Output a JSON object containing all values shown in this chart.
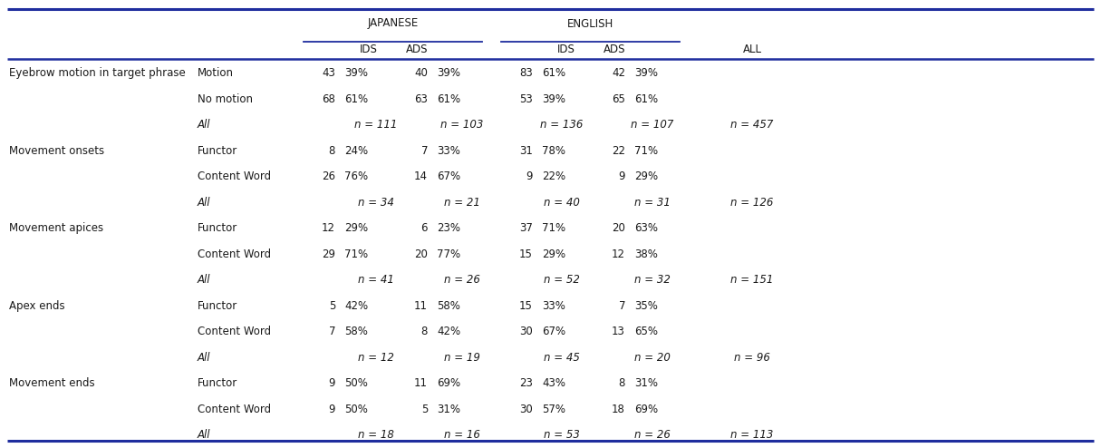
{
  "border_color": "#1f2d9e",
  "text_color": "#1a1a1a",
  "bg_color": "#ffffff",
  "font_size": 8.5,
  "rows": [
    {
      "cat": "Eyebrow motion in target phrase",
      "sub": "Motion",
      "j_ids_n": "43",
      "j_ids_p": "39%",
      "j_ads_n": "40",
      "j_ads_p": "39%",
      "e_ids_n": "83",
      "e_ids_p": "61%",
      "e_ads_n": "42",
      "e_ads_p": "39%",
      "all": ""
    },
    {
      "cat": "",
      "sub": "No motion",
      "j_ids_n": "68",
      "j_ids_p": "61%",
      "j_ads_n": "63",
      "j_ads_p": "61%",
      "e_ids_n": "53",
      "e_ids_p": "39%",
      "e_ads_n": "65",
      "e_ads_p": "61%",
      "all": ""
    },
    {
      "cat": "",
      "sub": "All",
      "j_ids_n": "n = 111",
      "j_ids_p": "",
      "j_ads_n": "n = 103",
      "j_ads_p": "",
      "e_ids_n": "n = 136",
      "e_ids_p": "",
      "e_ads_n": "n = 107",
      "e_ads_p": "",
      "all": "n = 457"
    },
    {
      "cat": "Movement onsets",
      "sub": "Functor",
      "j_ids_n": "8",
      "j_ids_p": "24%",
      "j_ads_n": "7",
      "j_ads_p": "33%",
      "e_ids_n": "31",
      "e_ids_p": "78%",
      "e_ads_n": "22",
      "e_ads_p": "71%",
      "all": ""
    },
    {
      "cat": "",
      "sub": "Content Word",
      "j_ids_n": "26",
      "j_ids_p": "76%",
      "j_ads_n": "14",
      "j_ads_p": "67%",
      "e_ids_n": "9",
      "e_ids_p": "22%",
      "e_ads_n": "9",
      "e_ads_p": "29%",
      "all": ""
    },
    {
      "cat": "",
      "sub": "All",
      "j_ids_n": "n = 34",
      "j_ids_p": "",
      "j_ads_n": "n = 21",
      "j_ads_p": "",
      "e_ids_n": "n = 40",
      "e_ids_p": "",
      "e_ads_n": "n = 31",
      "e_ads_p": "",
      "all": "n = 126"
    },
    {
      "cat": "Movement apices",
      "sub": "Functor",
      "j_ids_n": "12",
      "j_ids_p": "29%",
      "j_ads_n": "6",
      "j_ads_p": "23%",
      "e_ids_n": "37",
      "e_ids_p": "71%",
      "e_ads_n": "20",
      "e_ads_p": "63%",
      "all": ""
    },
    {
      "cat": "",
      "sub": "Content Word",
      "j_ids_n": "29",
      "j_ids_p": "71%",
      "j_ads_n": "20",
      "j_ads_p": "77%",
      "e_ids_n": "15",
      "e_ids_p": "29%",
      "e_ads_n": "12",
      "e_ads_p": "38%",
      "all": ""
    },
    {
      "cat": "",
      "sub": "All",
      "j_ids_n": "n = 41",
      "j_ids_p": "",
      "j_ads_n": "n = 26",
      "j_ads_p": "",
      "e_ids_n": "n = 52",
      "e_ids_p": "",
      "e_ads_n": "n = 32",
      "e_ads_p": "",
      "all": "n = 151"
    },
    {
      "cat": "Apex ends",
      "sub": "Functor",
      "j_ids_n": "5",
      "j_ids_p": "42%",
      "j_ads_n": "11",
      "j_ads_p": "58%",
      "e_ids_n": "15",
      "e_ids_p": "33%",
      "e_ads_n": "7",
      "e_ads_p": "35%",
      "all": ""
    },
    {
      "cat": "",
      "sub": "Content Word",
      "j_ids_n": "7",
      "j_ids_p": "58%",
      "j_ads_n": "8",
      "j_ads_p": "42%",
      "e_ids_n": "30",
      "e_ids_p": "67%",
      "e_ads_n": "13",
      "e_ads_p": "65%",
      "all": ""
    },
    {
      "cat": "",
      "sub": "All",
      "j_ids_n": "n = 12",
      "j_ids_p": "",
      "j_ads_n": "n = 19",
      "j_ads_p": "",
      "e_ids_n": "n = 45",
      "e_ids_p": "",
      "e_ads_n": "n = 20",
      "e_ads_p": "",
      "all": "n = 96"
    },
    {
      "cat": "Movement ends",
      "sub": "Functor",
      "j_ids_n": "9",
      "j_ids_p": "50%",
      "j_ads_n": "11",
      "j_ads_p": "69%",
      "e_ids_n": "23",
      "e_ids_p": "43%",
      "e_ads_n": "8",
      "e_ads_p": "31%",
      "all": ""
    },
    {
      "cat": "",
      "sub": "Content Word",
      "j_ids_n": "9",
      "j_ids_p": "50%",
      "j_ads_n": "5",
      "j_ads_p": "31%",
      "e_ids_n": "30",
      "e_ids_p": "57%",
      "e_ads_n": "18",
      "e_ads_p": "69%",
      "all": ""
    },
    {
      "cat": "",
      "sub": "All",
      "j_ids_n": "n = 18",
      "j_ids_p": "",
      "j_ads_n": "n = 16",
      "j_ads_p": "",
      "e_ids_n": "n = 53",
      "e_ids_p": "",
      "e_ads_n": "n = 26",
      "e_ads_p": "",
      "all": "n = 113"
    }
  ]
}
